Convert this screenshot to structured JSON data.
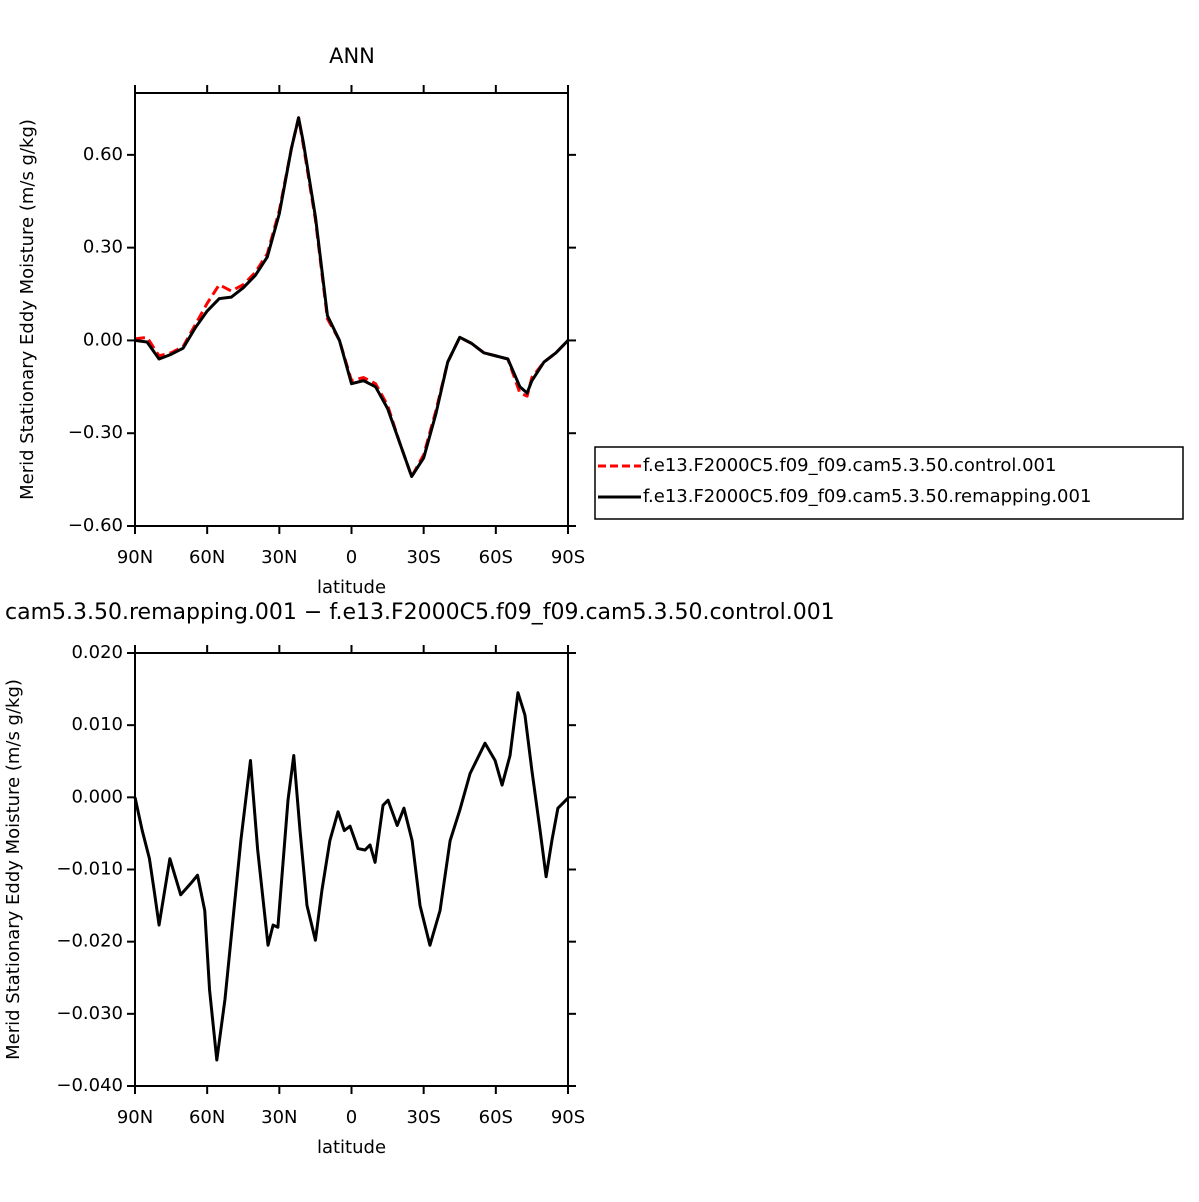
{
  "chart_data": [
    {
      "type": "line",
      "title": "ANN",
      "xlabel": "latitude",
      "ylabel": "Merid Stationary Eddy Moisture (m/s g/kg)",
      "x": [
        90,
        85,
        80,
        75,
        70,
        65,
        60,
        55,
        50,
        45,
        40,
        35,
        30,
        25,
        22,
        20,
        15,
        10,
        5,
        0,
        -5,
        -10,
        -15,
        -20,
        -25,
        -30,
        -35,
        -40,
        -45,
        -50,
        -55,
        -60,
        -65,
        -70,
        -73,
        -75,
        -80,
        -85,
        -90
      ],
      "xlim": [
        90,
        -90
      ],
      "xticks": [
        {
          "value": 90,
          "label": "90N"
        },
        {
          "value": 60,
          "label": "60N"
        },
        {
          "value": 30,
          "label": "30N"
        },
        0,
        {
          "value": -30,
          "label": "30S"
        },
        {
          "value": -60,
          "label": "60S"
        },
        {
          "value": -90,
          "label": "90S"
        }
      ],
      "ylim": [
        -0.6,
        0.8
      ],
      "yticks": [
        {
          "value": -0.6,
          "label": "−0.60"
        },
        {
          "value": -0.3,
          "label": "−0.30"
        },
        {
          "value": 0,
          "label": "0.00"
        },
        {
          "value": 0.3,
          "label": "0.30"
        },
        {
          "value": 0.6,
          "label": "0.60"
        }
      ],
      "legend": "outside-right",
      "series": [
        {
          "name": "f.e13.F2000C5.f09_f09.cam5.3.50.control.001",
          "color": "#ff0000",
          "line_style": "dashed",
          "values": [
            0.005,
            0.01,
            -0.05,
            -0.04,
            -0.02,
            0.05,
            0.12,
            0.18,
            0.16,
            0.18,
            0.22,
            0.28,
            0.42,
            0.62,
            0.72,
            0.63,
            0.39,
            0.07,
            0.0,
            -0.13,
            -0.12,
            -0.14,
            -0.21,
            -0.33,
            -0.44,
            -0.37,
            -0.23,
            -0.07,
            0.01,
            -0.01,
            -0.04,
            -0.05,
            -0.06,
            -0.17,
            -0.18,
            -0.12,
            -0.07,
            -0.04,
            0.0
          ]
        },
        {
          "name": "f.e13.F2000C5.f09_f09.cam5.3.50.remapping.001",
          "color": "#000000",
          "line_style": "solid",
          "values": [
            0.0,
            -0.005,
            -0.06,
            -0.045,
            -0.025,
            0.04,
            0.095,
            0.135,
            0.14,
            0.17,
            0.21,
            0.27,
            0.41,
            0.62,
            0.72,
            0.64,
            0.4,
            0.08,
            0.0,
            -0.14,
            -0.13,
            -0.15,
            -0.22,
            -0.33,
            -0.44,
            -0.38,
            -0.24,
            -0.07,
            0.01,
            -0.01,
            -0.04,
            -0.05,
            -0.06,
            -0.15,
            -0.17,
            -0.13,
            -0.07,
            -0.04,
            0.0
          ]
        }
      ]
    },
    {
      "type": "line",
      "title": "cam5.3.50.remapping.001 − f.e13.F2000C5.f09_f09.cam5.3.50.control.001",
      "xlabel": "latitude",
      "ylabel": "Merid Stationary Eddy Moisture (m/s g/kg)",
      "x": [
        90,
        87,
        84,
        82,
        80,
        75.5,
        71,
        67,
        64,
        61,
        59,
        56,
        52.6,
        49,
        46,
        42,
        39,
        34.7,
        32.6,
        30.6,
        26.4,
        24,
        21.4,
        18.5,
        15,
        12.3,
        9,
        5.6,
        3,
        0.6,
        -2.7,
        -5.6,
        -7.7,
        -9.8,
        -13.1,
        -15.2,
        -19,
        -21.8,
        -25.2,
        -28.5,
        -32.6,
        -36.8,
        -41,
        -45,
        -49.3,
        -55.5,
        -59.7,
        -62.6,
        -65.9,
        -69.2,
        -72.1,
        -75,
        -78.4,
        -80.9,
        -83.3,
        -85.8,
        -90
      ],
      "xlim": [
        90,
        -90
      ],
      "xticks": [
        {
          "value": 90,
          "label": "90N"
        },
        {
          "value": 60,
          "label": "60N"
        },
        {
          "value": 30,
          "label": "30N"
        },
        0,
        {
          "value": -30,
          "label": "30S"
        },
        {
          "value": -60,
          "label": "60S"
        },
        {
          "value": -90,
          "label": "90S"
        }
      ],
      "ylim": [
        -0.04,
        0.02
      ],
      "yticks": [
        {
          "value": -0.04,
          "label": "−0.040"
        },
        {
          "value": -0.03,
          "label": "−0.030"
        },
        {
          "value": -0.02,
          "label": "−0.020"
        },
        {
          "value": -0.01,
          "label": "−0.010"
        },
        {
          "value": 0,
          "label": "0.000"
        },
        {
          "value": 0.01,
          "label": "0.010"
        },
        {
          "value": 0.02,
          "label": "0.020"
        }
      ],
      "series": [
        {
          "color": "#000000",
          "line_style": "solid",
          "values": [
            0.0,
            -0.0046,
            -0.0085,
            -0.013,
            -0.0177,
            -0.0085,
            -0.0135,
            -0.012,
            -0.0108,
            -0.0157,
            -0.0267,
            -0.0364,
            -0.028,
            -0.016,
            -0.006,
            0.0051,
            -0.0073,
            -0.0205,
            -0.0177,
            -0.018,
            -0.0004,
            0.0058,
            -0.0046,
            -0.015,
            -0.0198,
            -0.0129,
            -0.006,
            -0.002,
            -0.0046,
            -0.004,
            -0.0071,
            -0.0073,
            -0.0066,
            -0.009,
            -0.0011,
            -0.0004,
            -0.0039,
            -0.0015,
            -0.006,
            -0.015,
            -0.0205,
            -0.0157,
            -0.006,
            -0.0018,
            0.0033,
            0.0075,
            0.0051,
            0.0017,
            0.0058,
            0.0145,
            0.0114,
            0.0037,
            -0.0046,
            -0.011,
            -0.006,
            -0.0015,
            -0.0001
          ]
        }
      ]
    }
  ]
}
